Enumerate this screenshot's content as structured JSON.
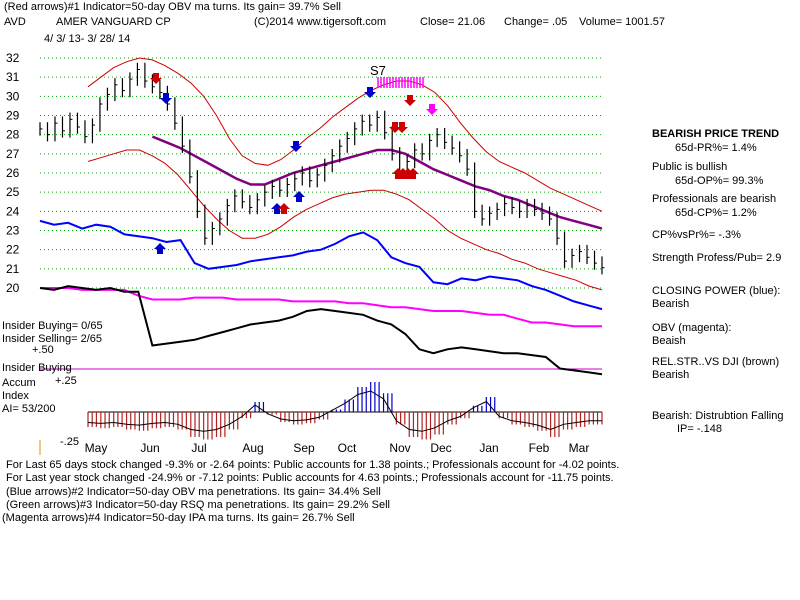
{
  "header": {
    "line1": "(Red arrows)#1 Indicator=50-day OBV ma turns.  Its gain= 39.7% Sell",
    "symbol": "AVD",
    "company": "AMER VANGUARD CP",
    "copyright": "(C)2014 www.tigersoft.com",
    "close": "Close=  21.06",
    "change": "Change= .05",
    "volume": "Volume= 1001.57",
    "date_range": "4/ 3/ 13- 3/ 28/ 14"
  },
  "annotations": {
    "s7": "S7",
    "insider_buying_ratio": "Insider Buying= 0/65",
    "insider_selling_ratio": "Insider Selling= 2/65",
    "insider_buying_label": "Insider Buying",
    "accum_index_label1": "Accum",
    "accum_index_label2": "Index",
    "ai_value": "AI= 53/200",
    "accum_plus50": "+.50",
    "accum_plus25": "+.25",
    "accum_minus25": "-.25"
  },
  "right_panel": {
    "trend_title": "BEARISH PRICE TREND",
    "pr": "65d-PR%= 1.4%",
    "public": "Public is bullish",
    "op": "65d-OP%= 99.3%",
    "professionals": "Professionals are bearish",
    "cp": "65d-CP%= 1.2%",
    "cpvspr": "CP%vsPr%= -.3%",
    "strength": "Strength Profess/Pub= 2.9",
    "closing_power_title": "CLOSING POWER (blue):",
    "closing_power_val": "Bearish",
    "obv_title": "OBV (magenta):",
    "obv_val": "Beaish",
    "relstr_title": "REL.STR..VS DJI (brown)",
    "relstr_val": "Bearish",
    "ip_title": "Bearish: Distrubtion Falling",
    "ip_val": "IP= -.148"
  },
  "bottom": {
    "line1": "For Last 65 days stock changed -9.3% or -2.64 points:  Public accounts for  1.38 points.;  Professionals account for -4.02 points.",
    "line2": "For Last year stock changed -24.9% or -7.12 points:  Public accounts for  4.63 points.;  Professionals account for -11.75 points.",
    "line3": "(Blue arrows)#2 Indicator=50-day OBV ma penetrations.  Its gain= 34.4% Sell",
    "line4": "(Green arrows)#3 Indicator=50-day RSQ ma penetrations.  Its gain= 29.2% Sell",
    "line5": "(Magenta arrows)#4 Indicator=50-day IPA ma turns.  Its gain= 26.7% Sell"
  },
  "chart_data": {
    "type": "line",
    "ylim": [
      19.5,
      32.5
    ],
    "y_ticks": [
      32,
      31,
      30,
      29,
      28,
      27,
      26,
      25,
      24,
      23,
      22,
      21,
      20
    ],
    "x_tick_labels": [
      "May",
      "Jun",
      "Jul",
      "Aug",
      "Sep",
      "Oct",
      "Nov",
      "Dec",
      "Jan",
      "Feb",
      "Mar"
    ],
    "colors": {
      "price": "#000000",
      "bands": "#cc0000",
      "ma50": "#800080",
      "closing_power": "#0000ff",
      "obv": "#ff00ff",
      "relstr": "#000000",
      "accum_neg": "#b22222",
      "accum_pos": "#0000cc"
    },
    "price_close": [
      28.3,
      28.0,
      28.6,
      28.2,
      28.8,
      28.4,
      27.9,
      28.5,
      29.6,
      30.1,
      30.6,
      30.3,
      30.9,
      31.4,
      30.8,
      30.5,
      30.2,
      29.6,
      28.6,
      27.4,
      25.8,
      24.0,
      22.6,
      23.1,
      23.6,
      24.3,
      24.8,
      24.5,
      24.2,
      24.6,
      25.0,
      25.3,
      25.1,
      25.4,
      25.7,
      26.0,
      25.6,
      25.9,
      26.4,
      26.9,
      27.4,
      27.8,
      28.3,
      28.7,
      28.5,
      28.9,
      28.1,
      27.0,
      26.1,
      26.6,
      27.2,
      27.0,
      27.7,
      28.0,
      27.6,
      27.3,
      26.9,
      26.2,
      24.0,
      23.6,
      23.9,
      24.1,
      24.4,
      24.2,
      24.0,
      24.3,
      24.1,
      23.9,
      23.6,
      22.6,
      21.4,
      21.7,
      21.9,
      21.6,
      21.3,
      21.06
    ],
    "band_upper": [
      30.5,
      31.0,
      31.5,
      31.8,
      32.0,
      31.9,
      31.6,
      31.2,
      30.7,
      30.0,
      29.0,
      27.8,
      26.9,
      26.5,
      26.4,
      26.7,
      27.2,
      27.8,
      28.3,
      28.9,
      29.4,
      29.9,
      30.3,
      30.6,
      30.8,
      30.8,
      30.6,
      30.2,
      29.5,
      28.6,
      27.8,
      27.1,
      26.6,
      26.3,
      26.0,
      25.6,
      25.2,
      24.9,
      24.6,
      24.3,
      24.0
    ],
    "band_lower": [
      26.6,
      26.8,
      27.0,
      27.2,
      27.2,
      26.9,
      26.5,
      25.9,
      25.1,
      24.3,
      23.6,
      23.0,
      22.6,
      22.6,
      22.8,
      23.2,
      23.7,
      24.1,
      24.4,
      24.7,
      24.9,
      25.0,
      25.1,
      25.1,
      24.9,
      24.6,
      24.1,
      23.6,
      23.0,
      22.6,
      22.3,
      22.0,
      21.8,
      21.5,
      21.3,
      21.0,
      20.8,
      20.6,
      20.4,
      20.1,
      19.9
    ],
    "ma50": [
      null,
      null,
      null,
      null,
      null,
      null,
      null,
      null,
      27.9,
      27.6,
      27.3,
      26.9,
      26.5,
      26.1,
      25.7,
      25.4,
      25.4,
      25.7,
      26.0,
      26.2,
      26.4,
      26.6,
      26.8,
      27.0,
      27.2,
      27.2,
      27.0,
      26.6,
      26.2,
      25.9,
      25.6,
      25.3,
      25.1,
      24.8,
      24.6,
      24.3,
      24.0,
      23.7,
      23.5,
      23.3,
      23.1
    ],
    "closing_power": [
      23.5,
      23.3,
      23.4,
      23.1,
      23.3,
      23.2,
      22.8,
      22.7,
      22.6,
      22.4,
      22.5,
      21.3,
      21.0,
      21.1,
      21.2,
      21.4,
      21.5,
      21.6,
      21.7,
      21.9,
      22.0,
      22.3,
      22.7,
      22.9,
      22.5,
      21.6,
      21.3,
      21.1,
      20.3,
      20.2,
      20.5,
      20.4,
      20.6,
      20.5,
      20.4,
      20.1,
      19.9,
      19.6,
      19.3,
      19.1,
      18.9
    ],
    "obv": [
      20.0,
      20.0,
      20.0,
      19.9,
      19.9,
      19.9,
      19.9,
      19.6,
      19.4,
      19.4,
      19.4,
      19.5,
      19.5,
      19.5,
      19.4,
      19.4,
      19.4,
      19.4,
      19.3,
      19.3,
      19.3,
      19.3,
      19.2,
      19.2,
      19.1,
      19.0,
      19.0,
      18.9,
      18.8,
      18.8,
      18.8,
      18.7,
      18.6,
      18.6,
      18.4,
      18.2,
      18.2,
      18.1,
      18.0,
      18.0,
      18.0
    ],
    "relstr": [
      20.0,
      19.9,
      20.1,
      20.0,
      19.9,
      20.0,
      19.8,
      19.8,
      17.0,
      17.1,
      17.2,
      17.3,
      17.5,
      17.7,
      17.9,
      18.1,
      18.2,
      18.3,
      18.5,
      18.8,
      18.9,
      18.8,
      18.7,
      18.6,
      18.3,
      18.1,
      17.6,
      16.8,
      16.6,
      16.8,
      16.9,
      16.8,
      16.7,
      16.6,
      16.6,
      16.5,
      16.4,
      15.8,
      15.7,
      15.6,
      15.5
    ],
    "accum_index": [
      -0.12,
      -0.13,
      -0.12,
      -0.14,
      -0.15,
      -0.13,
      -0.12,
      -0.14,
      -0.2,
      -0.22,
      -0.2,
      -0.14,
      -0.05,
      0.08,
      -0.02,
      -0.08,
      -0.1,
      -0.09,
      -0.06,
      0.02,
      0.1,
      0.2,
      0.24,
      0.15,
      -0.1,
      -0.2,
      -0.22,
      -0.18,
      -0.1,
      -0.05,
      0.05,
      0.12,
      -0.05,
      -0.1,
      -0.12,
      -0.15,
      -0.2,
      -0.14,
      -0.12,
      -0.1,
      -0.1
    ]
  }
}
